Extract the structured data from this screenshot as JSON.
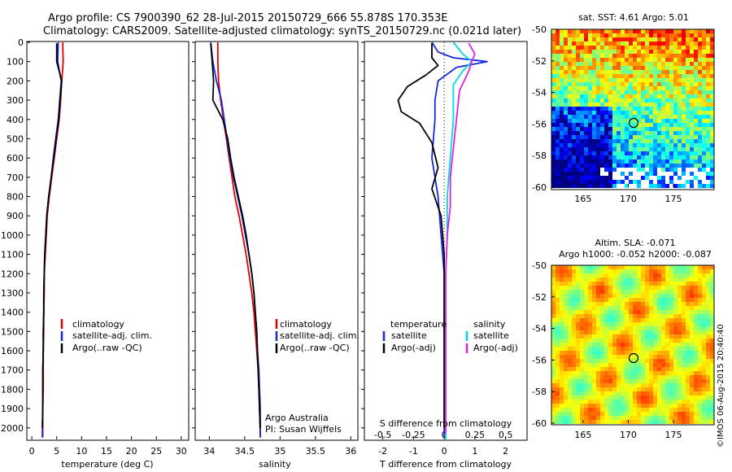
{
  "header": {
    "line1": "Argo profile: CS 7900390_62 28-Jul-2015 20150729_666 55.878S 170.353E",
    "line2": "Climatology: CARS2009. Satellite-adjusted climatology: synTS_20150729.nc (0.021d later)"
  },
  "colors": {
    "climatology": "#e00000",
    "satellite": "#1428e0",
    "argo": "#000000",
    "sal_satellite": "#00d8e0",
    "sal_argo": "#e020e0"
  },
  "depth_ticks": [
    "0",
    "100",
    "200",
    "300",
    "400",
    "500",
    "600",
    "700",
    "800",
    "900",
    "1000",
    "1100",
    "1200",
    "1300",
    "1400",
    "1500",
    "1600",
    "1700",
    "1800",
    "1900",
    "2000"
  ],
  "legend_profile": [
    "climatology",
    "satellite-adj. clim.",
    "Argo(..raw -QC)"
  ],
  "legend_diff": {
    "temperature_head": "temperature",
    "salinity_head": "salinity",
    "t_sat": "satellite",
    "t_argo": "Argo(-adj)",
    "s_sat": "satellite",
    "s_argo": "Argo(-adj)"
  },
  "credit": {
    "line1": "Argo Australia",
    "line2": "PI: Susan Wijffels"
  },
  "map_sst": {
    "title": "sat. SST: 4.61  Argo: 5.01",
    "yticks": [
      "-50",
      "-52",
      "-54",
      "-56",
      "-58",
      "-60"
    ],
    "xticks": [
      "165",
      "170",
      "175"
    ]
  },
  "map_sla": {
    "title1": "Altim. SLA: -0.071",
    "title2": "Argo h1000: -0.052 h2000: -0.087",
    "yticks": [
      "-50",
      "-52",
      "-54",
      "-56",
      "-58",
      "-60"
    ],
    "xticks": [
      "165",
      "170",
      "175"
    ]
  },
  "watermark": "©IMOS 06-Aug-2015 20:40:40",
  "chart_data": [
    {
      "type": "line",
      "xlabel": "temperature (deg C)",
      "xticks": [
        "0",
        "5",
        "10",
        "15",
        "20",
        "25",
        "30"
      ],
      "xlim": [
        -1,
        31.5
      ],
      "ylim": [
        0,
        2060
      ],
      "series": [
        {
          "name": "climatology",
          "x": [
            6.2,
            6.3,
            6.0,
            5.8,
            5.5,
            5.0,
            4.5,
            4.0,
            3.5,
            3.1,
            2.9,
            2.7,
            2.5,
            2.5,
            2.4,
            2.4,
            2.3,
            2.3,
            2.3,
            2.2,
            2.2
          ],
          "y": [
            0,
            100,
            200,
            300,
            400,
            500,
            600,
            700,
            800,
            900,
            1000,
            1100,
            1200,
            1300,
            1400,
            1500,
            1600,
            1700,
            1800,
            1900,
            2050
          ]
        },
        {
          "name": "satellite-adj. clim.",
          "x": [
            5.3,
            5.2,
            5.9,
            5.6,
            5.3,
            4.8,
            4.3,
            3.9,
            3.4,
            3.0,
            2.8,
            2.6,
            2.5,
            2.4,
            2.4,
            2.3,
            2.3,
            2.2,
            2.2,
            2.2,
            2.1
          ],
          "y": [
            0,
            100,
            200,
            300,
            400,
            500,
            600,
            700,
            800,
            900,
            1000,
            1100,
            1200,
            1300,
            1400,
            1500,
            1600,
            1700,
            1800,
            1900,
            2050
          ]
        },
        {
          "name": "Argo(..raw -QC)",
          "x": [
            5.0,
            5.0,
            6.0,
            5.7,
            5.4,
            4.9,
            4.4,
            3.9,
            3.4,
            3.0,
            2.8,
            2.6,
            2.5,
            2.4,
            2.4,
            2.3,
            2.3,
            2.2,
            2.2,
            2.2,
            2.1
          ],
          "y": [
            5,
            100,
            200,
            300,
            400,
            500,
            600,
            700,
            800,
            900,
            1000,
            1100,
            1200,
            1300,
            1400,
            1500,
            1600,
            1700,
            1800,
            1900,
            2000
          ]
        }
      ]
    },
    {
      "type": "line",
      "xlabel": "salinity",
      "xticks": [
        "34",
        "34.5",
        "35",
        "35.5",
        "36"
      ],
      "xlim": [
        33.8,
        36.1
      ],
      "ylim": [
        0,
        2060
      ],
      "series": [
        {
          "name": "climatology",
          "x": [
            34.12,
            34.12,
            34.13,
            34.16,
            34.2,
            34.24,
            34.28,
            34.32,
            34.36,
            34.42,
            34.47,
            34.52,
            34.56,
            34.6,
            34.63,
            34.65,
            34.67,
            34.69,
            34.7,
            34.71,
            34.72
          ],
          "y": [
            0,
            100,
            200,
            300,
            400,
            500,
            600,
            700,
            800,
            900,
            1000,
            1100,
            1200,
            1300,
            1400,
            1500,
            1600,
            1700,
            1800,
            1900,
            2050
          ]
        },
        {
          "name": "satellite-adj. clim.",
          "x": [
            34.02,
            34.05,
            34.1,
            34.17,
            34.21,
            34.25,
            34.29,
            34.34,
            34.4,
            34.46,
            34.51,
            34.56,
            34.6,
            34.63,
            34.65,
            34.67,
            34.68,
            34.7,
            34.71,
            34.72,
            34.72
          ],
          "y": [
            0,
            100,
            200,
            300,
            400,
            500,
            600,
            700,
            800,
            900,
            1000,
            1100,
            1200,
            1300,
            1400,
            1500,
            1600,
            1700,
            1800,
            1900,
            2050
          ]
        },
        {
          "name": "Argo(..raw -QC)",
          "x": [
            34.02,
            34.04,
            34.06,
            34.05,
            34.19,
            34.26,
            34.3,
            34.35,
            34.41,
            34.47,
            34.52,
            34.56,
            34.6,
            34.63,
            34.65,
            34.67,
            34.68,
            34.69,
            34.7,
            34.71,
            34.72
          ],
          "y": [
            5,
            100,
            200,
            300,
            400,
            500,
            600,
            700,
            800,
            900,
            1000,
            1100,
            1200,
            1300,
            1400,
            1500,
            1600,
            1700,
            1800,
            1900,
            2000
          ]
        }
      ]
    },
    {
      "type": "line",
      "xlabel": "T difference from climatology",
      "x2label": "S difference from climatology",
      "xticks": [
        "-2",
        "-1",
        "0",
        "1",
        "2"
      ],
      "x2ticks": [
        "-0.5",
        "-0.25",
        "0",
        "0.25",
        "0.5"
      ],
      "xlim": [
        -2.6,
        2.7
      ],
      "ylim": [
        0,
        2060
      ],
      "series": [
        {
          "name": "temperature satellite",
          "x": [
            -0.4,
            -0.2,
            0.3,
            1.4,
            0.4,
            -0.2,
            -0.3,
            -0.3,
            -0.4,
            -0.2,
            -0.1,
            0.0,
            0.0,
            0.0,
            0.0,
            0.0,
            0.0,
            0.0,
            0.0,
            0.0,
            0.0
          ],
          "y": [
            0,
            50,
            80,
            100,
            130,
            200,
            300,
            400,
            600,
            800,
            1000,
            1200,
            1300,
            1400,
            1500,
            1600,
            1700,
            1800,
            1900,
            2000,
            2050
          ]
        },
        {
          "name": "temperature Argo(-adj)",
          "x": [
            -0.4,
            -0.4,
            -0.2,
            -0.6,
            -1.2,
            -1.5,
            -1.4,
            -0.8,
            -0.4,
            -0.2,
            -0.4,
            -0.1,
            0.0,
            0.0,
            0.0,
            0.0,
            0.0,
            0.0,
            0.0,
            0.0,
            0.0
          ],
          "y": [
            5,
            80,
            120,
            170,
            230,
            300,
            360,
            420,
            520,
            650,
            760,
            900,
            1100,
            1300,
            1400,
            1500,
            1600,
            1700,
            1800,
            1900,
            2000
          ]
        },
        {
          "name": "salinity satellite",
          "x": [
            0.3,
            0.6,
            0.9,
            0.6,
            0.3,
            0.3,
            0.3,
            0.2,
            0.1,
            0.1,
            0.05,
            0.05,
            0.05,
            0.05,
            0.05,
            0.05,
            0.05,
            0.05,
            0.05,
            0.05,
            0.05
          ],
          "y": [
            0,
            60,
            100,
            150,
            220,
            300,
            400,
            600,
            800,
            1000,
            1200,
            1300,
            1400,
            1500,
            1600,
            1700,
            1800,
            1900,
            2000,
            2050,
            2060
          ]
        },
        {
          "name": "salinity Argo(-adj)",
          "x": [
            0.8,
            1.0,
            0.9,
            0.8,
            0.5,
            0.4,
            0.3,
            0.2,
            0.2,
            0.1,
            0.05,
            0.05,
            0.05,
            0.05,
            0.05,
            0.05,
            0.05,
            0.05,
            0.05,
            0.05,
            0.05
          ],
          "y": [
            5,
            60,
            100,
            150,
            250,
            400,
            550,
            700,
            850,
            1000,
            1200,
            1300,
            1400,
            1500,
            1600,
            1700,
            1800,
            1900,
            2000,
            2020,
            2030
          ]
        }
      ]
    }
  ]
}
